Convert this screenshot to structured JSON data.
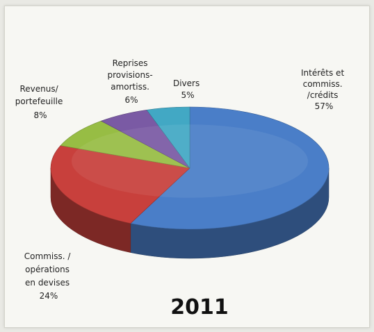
{
  "chart_data": {
    "type": "pie",
    "title": "2011",
    "slices": [
      {
        "label": [
          "Intérêts et",
          "commiss.",
          "/crédits"
        ],
        "percent_label": "57%",
        "value": 57,
        "color": "#4a7ec8"
      },
      {
        "label": [
          "Commiss. /",
          "opérations",
          "en devises"
        ],
        "percent_label": "24%",
        "value": 24,
        "color": "#c8403c"
      },
      {
        "label": [
          "Revenus/",
          "portefeuille"
        ],
        "percent_label": "8%",
        "value": 8,
        "color": "#97bd44"
      },
      {
        "label": [
          "Reprises",
          "provisions-",
          "amortiss."
        ],
        "percent_label": "6%",
        "value": 6,
        "color": "#7a5aa4"
      },
      {
        "label": [
          "Divers"
        ],
        "percent_label": "5%",
        "value": 5,
        "color": "#42a8c4"
      }
    ]
  }
}
